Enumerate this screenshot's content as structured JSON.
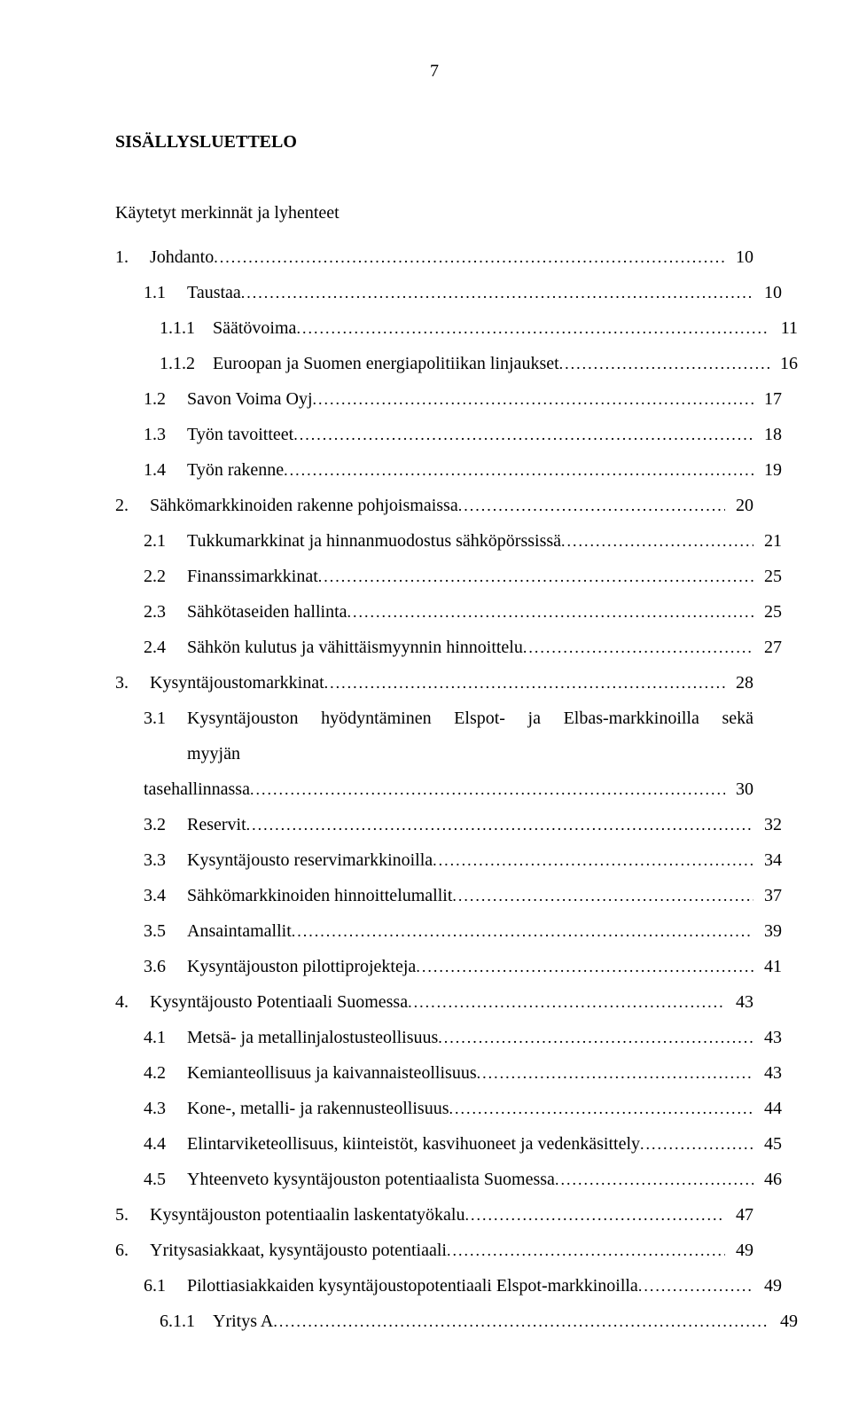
{
  "typography": {
    "font_family": "Times New Roman",
    "base_font_size_pt": 12,
    "line_height": 2.0,
    "text_color": "#000000",
    "background_color": "#ffffff",
    "heading_weight": "bold"
  },
  "page_number": "7",
  "heading": "SISÄLLYSLUETTELO",
  "intro_line": "Käytetyt merkinnät ja lyhenteet",
  "toc": [
    {
      "indent": 0,
      "num": "1.",
      "title": "Johdanto",
      "page": "10",
      "wrap": false
    },
    {
      "indent": 1,
      "num": "1.1",
      "title": "Taustaa",
      "page": "10",
      "wrap": false
    },
    {
      "indent": 2,
      "num": "1.1.1",
      "title": "Säätövoima",
      "page": "11",
      "wrap": false
    },
    {
      "indent": 2,
      "num": "1.1.2",
      "title": "Euroopan ja Suomen energiapolitiikan linjaukset",
      "page": "16",
      "wrap": false
    },
    {
      "indent": 1,
      "num": "1.2",
      "title": "Savon Voima Oyj",
      "page": "17",
      "wrap": false
    },
    {
      "indent": 1,
      "num": "1.3",
      "title": "Työn tavoitteet",
      "page": "18",
      "wrap": false
    },
    {
      "indent": 1,
      "num": "1.4",
      "title": "Työn rakenne",
      "page": "19",
      "wrap": false
    },
    {
      "indent": 0,
      "num": "2.",
      "title": "Sähkömarkkinoiden rakenne pohjoismaissa",
      "page": "20",
      "wrap": false
    },
    {
      "indent": 1,
      "num": "2.1",
      "title": "Tukkumarkkinat ja hinnanmuodostus sähköpörssissä",
      "page": "21",
      "wrap": false
    },
    {
      "indent": 1,
      "num": "2.2",
      "title": "Finanssimarkkinat",
      "page": "25",
      "wrap": false
    },
    {
      "indent": 1,
      "num": "2.3",
      "title": "Sähkötaseiden hallinta",
      "page": "25",
      "wrap": false
    },
    {
      "indent": 1,
      "num": "2.4",
      "title": "Sähkön kulutus ja vähittäismyynnin hinnoittelu",
      "page": "27",
      "wrap": false
    },
    {
      "indent": 0,
      "num": "3.",
      "title": "Kysyntäjoustomarkkinat",
      "page": "28",
      "wrap": false
    },
    {
      "indent": 1,
      "num": "3.1",
      "title_line1": "Kysyntäjouston hyödyntäminen Elspot- ja Elbas-markkinoilla sekä myyjän",
      "title_line2": "tasehallinnassa",
      "page": "30",
      "wrap": true
    },
    {
      "indent": 1,
      "num": "3.2",
      "title": "Reservit",
      "page": "32",
      "wrap": false
    },
    {
      "indent": 1,
      "num": "3.3",
      "title": "Kysyntäjousto reservimarkkinoilla",
      "page": "34",
      "wrap": false
    },
    {
      "indent": 1,
      "num": "3.4",
      "title": "Sähkömarkkinoiden hinnoittelumallit",
      "page": "37",
      "wrap": false
    },
    {
      "indent": 1,
      "num": "3.5",
      "title": "Ansaintamallit",
      "page": "39",
      "wrap": false
    },
    {
      "indent": 1,
      "num": "3.6",
      "title": "Kysyntäjouston pilottiprojekteja",
      "page": "41",
      "wrap": false
    },
    {
      "indent": 0,
      "num": "4.",
      "title": "Kysyntäjousto Potentiaali Suomessa",
      "page": "43",
      "wrap": false
    },
    {
      "indent": 1,
      "num": "4.1",
      "title": "Metsä- ja metallinjalostusteollisuus",
      "page": "43",
      "wrap": false
    },
    {
      "indent": 1,
      "num": "4.2",
      "title": "Kemianteollisuus ja kaivannaisteollisuus",
      "page": "43",
      "wrap": false
    },
    {
      "indent": 1,
      "num": "4.3",
      "title": "Kone-, metalli- ja rakennusteollisuus",
      "page": "44",
      "wrap": false
    },
    {
      "indent": 1,
      "num": "4.4",
      "title": "Elintarviketeollisuus, kiinteistöt, kasvihuoneet ja vedenkäsittely",
      "page": "45",
      "wrap": false
    },
    {
      "indent": 1,
      "num": "4.5",
      "title": "Yhteenveto kysyntäjouston potentiaalista Suomessa",
      "page": "46",
      "wrap": false
    },
    {
      "indent": 0,
      "num": "5.",
      "title": "Kysyntäjouston potentiaalin laskentatyökalu",
      "page": "47",
      "wrap": false
    },
    {
      "indent": 0,
      "num": "6.",
      "title": "Yritysasiakkaat, kysyntäjousto potentiaali",
      "page": "49",
      "wrap": false
    },
    {
      "indent": 1,
      "num": "6.1",
      "title": "Pilottiasiakkaiden kysyntäjoustopotentiaali Elspot-markkinoilla",
      "page": "49",
      "wrap": false
    },
    {
      "indent": 2,
      "num": "6.1.1",
      "title": "Yritys A",
      "page": "49",
      "wrap": false
    }
  ]
}
